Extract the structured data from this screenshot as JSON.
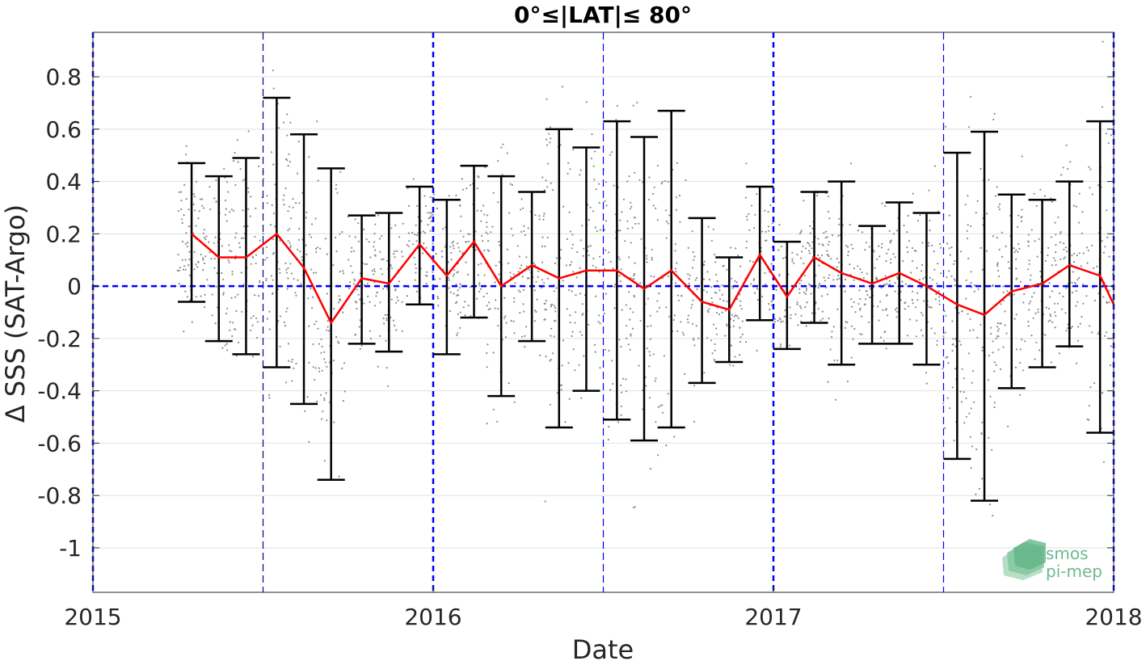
{
  "chart_data": {
    "type": "line",
    "title": "0°≤|LAT|≤ 80°",
    "xlabel": "Date",
    "ylabel": "Δ SSS (SAT-Argo)",
    "xlim": [
      2015.0,
      2018.0
    ],
    "ylim": [
      -1.17,
      0.97
    ],
    "x_ticks": [
      {
        "value": 2015,
        "label": "2015"
      },
      {
        "value": 2016,
        "label": "2016"
      },
      {
        "value": 2017,
        "label": "2017"
      },
      {
        "value": 2018,
        "label": "2018"
      }
    ],
    "y_ticks": [
      {
        "value": 0.8,
        "label": "0.8"
      },
      {
        "value": 0.6,
        "label": "0.6"
      },
      {
        "value": 0.4,
        "label": "0.4"
      },
      {
        "value": 0.2,
        "label": "0.2"
      },
      {
        "value": 0,
        "label": "0"
      },
      {
        "value": -0.2,
        "label": "-0.2"
      },
      {
        "value": -0.4,
        "label": "-0.4"
      },
      {
        "value": -0.6,
        "label": "-0.6"
      },
      {
        "value": -0.8,
        "label": "-0.8"
      },
      {
        "value": -1,
        "label": "-1"
      }
    ],
    "grid": true,
    "series": [
      {
        "kind": "errorbar-mean-line",
        "color": "#ff0000",
        "errorbar_color": "#000000",
        "points": [
          {
            "x": 2015.29,
            "mean": 0.2,
            "lower": -0.06,
            "upper": 0.47
          },
          {
            "x": 2015.37,
            "mean": 0.11,
            "lower": -0.21,
            "upper": 0.42
          },
          {
            "x": 2015.45,
            "mean": 0.11,
            "lower": -0.26,
            "upper": 0.49
          },
          {
            "x": 2015.54,
            "mean": 0.2,
            "lower": -0.31,
            "upper": 0.72
          },
          {
            "x": 2015.62,
            "mean": 0.07,
            "lower": -0.45,
            "upper": 0.58
          },
          {
            "x": 2015.7,
            "mean": -0.14,
            "lower": -0.74,
            "upper": 0.45
          },
          {
            "x": 2015.79,
            "mean": 0.03,
            "lower": -0.22,
            "upper": 0.27
          },
          {
            "x": 2015.87,
            "mean": 0.01,
            "lower": -0.25,
            "upper": 0.28
          },
          {
            "x": 2015.96,
            "mean": 0.16,
            "lower": -0.07,
            "upper": 0.38
          },
          {
            "x": 2016.04,
            "mean": 0.04,
            "lower": -0.26,
            "upper": 0.33
          },
          {
            "x": 2016.12,
            "mean": 0.17,
            "lower": -0.12,
            "upper": 0.46
          },
          {
            "x": 2016.2,
            "mean": 0.0,
            "lower": -0.42,
            "upper": 0.42
          },
          {
            "x": 2016.29,
            "mean": 0.08,
            "lower": -0.21,
            "upper": 0.36
          },
          {
            "x": 2016.37,
            "mean": 0.03,
            "lower": -0.54,
            "upper": 0.6
          },
          {
            "x": 2016.45,
            "mean": 0.06,
            "lower": -0.4,
            "upper": 0.53
          },
          {
            "x": 2016.54,
            "mean": 0.06,
            "lower": -0.51,
            "upper": 0.63
          },
          {
            "x": 2016.62,
            "mean": -0.01,
            "lower": -0.59,
            "upper": 0.57
          },
          {
            "x": 2016.7,
            "mean": 0.06,
            "lower": -0.54,
            "upper": 0.67
          },
          {
            "x": 2016.79,
            "mean": -0.06,
            "lower": -0.37,
            "upper": 0.26
          },
          {
            "x": 2016.87,
            "mean": -0.09,
            "lower": -0.29,
            "upper": 0.11
          },
          {
            "x": 2016.96,
            "mean": 0.12,
            "lower": -0.13,
            "upper": 0.38
          },
          {
            "x": 2017.04,
            "mean": -0.04,
            "lower": -0.24,
            "upper": 0.17
          },
          {
            "x": 2017.12,
            "mean": 0.11,
            "lower": -0.14,
            "upper": 0.36
          },
          {
            "x": 2017.2,
            "mean": 0.05,
            "lower": -0.3,
            "upper": 0.4
          },
          {
            "x": 2017.29,
            "mean": 0.01,
            "lower": -0.22,
            "upper": 0.23
          },
          {
            "x": 2017.37,
            "mean": 0.05,
            "lower": -0.22,
            "upper": 0.32
          },
          {
            "x": 2017.45,
            "mean": 0.0,
            "lower": -0.3,
            "upper": 0.28
          },
          {
            "x": 2017.54,
            "mean": -0.07,
            "lower": -0.66,
            "upper": 0.51
          },
          {
            "x": 2017.62,
            "mean": -0.11,
            "lower": -0.82,
            "upper": 0.59
          },
          {
            "x": 2017.7,
            "mean": -0.02,
            "lower": -0.39,
            "upper": 0.35
          },
          {
            "x": 2017.79,
            "mean": 0.01,
            "lower": -0.31,
            "upper": 0.33
          },
          {
            "x": 2017.87,
            "mean": 0.08,
            "lower": -0.23,
            "upper": 0.4
          },
          {
            "x": 2017.96,
            "mean": 0.04,
            "lower": -0.56,
            "upper": 0.63
          },
          {
            "x": 2018.0,
            "mean": -0.07
          }
        ]
      },
      {
        "kind": "scatter",
        "color": "#808080",
        "x_range": [
          2015.25,
          2018.0
        ],
        "y_spread": "dense cloud of individual colocation differences, mostly between -0.4 and 0.5"
      }
    ],
    "reference_lines": [
      {
        "axis": "y",
        "value": 0,
        "style": "dashed",
        "color": "#0000ff"
      },
      {
        "axis": "x",
        "value": 2015.0,
        "style": "dashed",
        "color": "#0000ff"
      },
      {
        "axis": "x",
        "value": 2015.5,
        "style": "dashed",
        "color": "#00008b"
      },
      {
        "axis": "x",
        "value": 2016.0,
        "style": "dashed",
        "color": "#0000ff"
      },
      {
        "axis": "x",
        "value": 2016.5,
        "style": "dashed",
        "color": "#0000ff"
      },
      {
        "axis": "x",
        "value": 2017.0,
        "style": "dashed",
        "color": "#0000ff"
      },
      {
        "axis": "x",
        "value": 2017.5,
        "style": "dashed",
        "color": "#0000ff"
      },
      {
        "axis": "x",
        "value": 2018.0,
        "style": "dashed",
        "color": "#0000ff"
      }
    ]
  },
  "logo": {
    "line1": "smos",
    "line2": "pi-mep",
    "color": "#6fb891"
  }
}
